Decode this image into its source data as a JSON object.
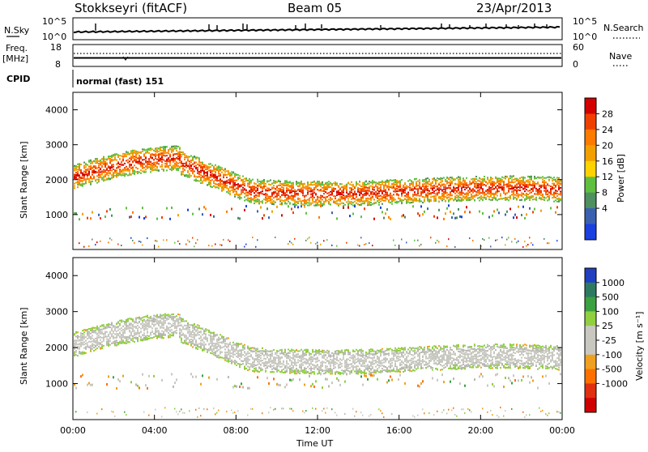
{
  "header": {
    "station": "Stokkseyri (fitACF)",
    "beam": "Beam 05",
    "date": "23/Apr/2013"
  },
  "nsky_panel": {
    "left_label": "N.Sky",
    "right_label": "N.Search",
    "ticks_left": [
      "10^5",
      "10^0"
    ],
    "ticks_right": [
      "10^5",
      "10^0"
    ]
  },
  "freq_panel": {
    "left_label_1": "Freq.",
    "left_label_2": "[MHz]",
    "right_label": "Nave",
    "ticks_left": [
      "18",
      "8"
    ],
    "ticks_right": [
      "60",
      "0"
    ]
  },
  "cpid": {
    "label": "CPID",
    "value": "normal (fast) 151"
  },
  "chart_data": [
    {
      "type": "heatmap",
      "panel": "power",
      "ylabel": "Slant Range [km]",
      "xlabel": "Time UT",
      "x_ticks": [
        "00:00",
        "04:00",
        "08:00",
        "12:00",
        "16:00",
        "20:00",
        "00:00"
      ],
      "y_ticks": [
        "4000",
        "3000",
        "2000",
        "1000"
      ],
      "colorbar_label": "Power [dB]",
      "colorbar_ticks": [
        "28",
        "24",
        "20",
        "16",
        "12",
        "8",
        "4"
      ],
      "colorbar_colors": [
        "#d40000",
        "#f04000",
        "#ff7a00",
        "#f2a000",
        "#ffd200",
        "#5fc040",
        "#4f8f60",
        "#3a60b0",
        "#1a40e0"
      ]
    },
    {
      "type": "heatmap",
      "panel": "velocity",
      "ylabel": "Slant Range [km]",
      "xlabel": "Time UT",
      "x_ticks": [
        "00:00",
        "04:00",
        "08:00",
        "12:00",
        "16:00",
        "20:00",
        "00:00"
      ],
      "y_ticks": [
        "4000",
        "3000",
        "2000",
        "1000"
      ],
      "colorbar_label": "Velocity [m s⁻¹]",
      "colorbar_ticks": [
        "1000",
        "500",
        "100",
        "25",
        "-25",
        "-100",
        "-500",
        "-1000"
      ],
      "colorbar_colors": [
        "#2040c0",
        "#2e7a60",
        "#3aa040",
        "#90d040",
        "#c8c8c0",
        "#c8c8c0",
        "#f0a020",
        "#ff7000",
        "#e03010",
        "#d00000"
      ]
    }
  ]
}
